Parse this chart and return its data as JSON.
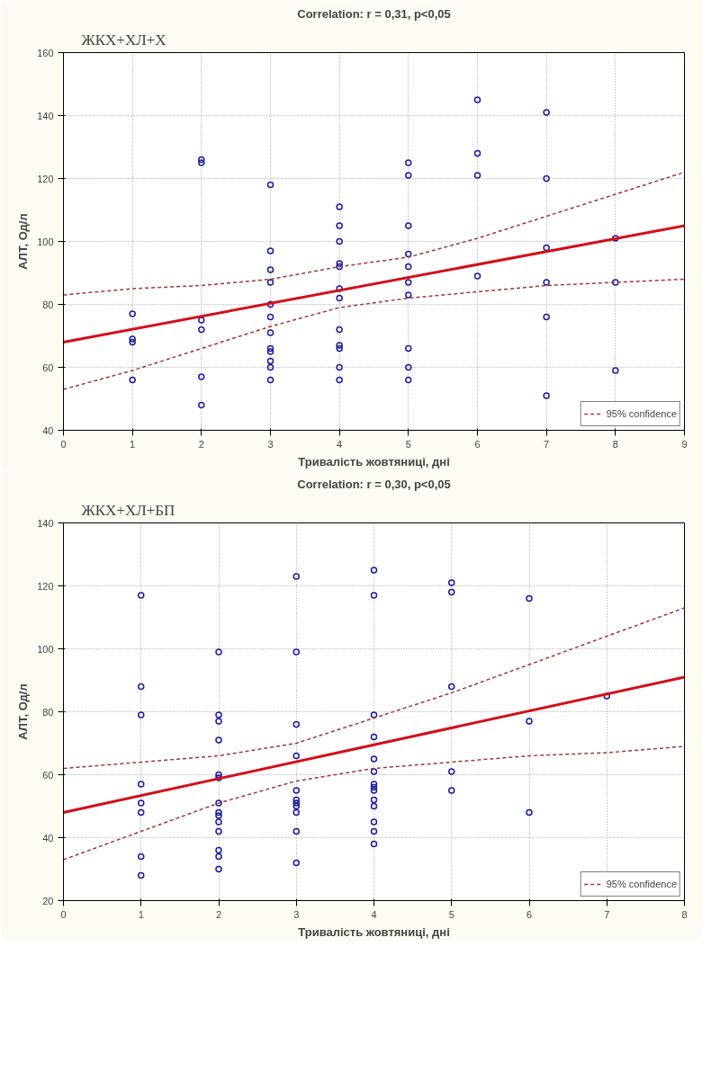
{
  "chart_data": [
    {
      "type": "scatter",
      "subtitle": "ЖКХ+ХЛ+Х",
      "title": "Correlation: r = 0,31, p<0,05",
      "xlabel": "Тривалість жовтяниці, дні",
      "ylabel": "АЛТ, Од/л",
      "xlim": [
        0,
        9
      ],
      "xticks": [
        0,
        1,
        2,
        3,
        4,
        5,
        6,
        7,
        8,
        9
      ],
      "ylim": [
        40,
        160
      ],
      "yticks": [
        40,
        60,
        80,
        100,
        120,
        140,
        160
      ],
      "grid": true,
      "legend": "bottom right",
      "series": [
        {
          "type": "scatter",
          "marker": "circle",
          "color": "#1c1c9c",
          "x": [
            1,
            1,
            1,
            1,
            2,
            2,
            2,
            2,
            2,
            2,
            3,
            3,
            3,
            3,
            3,
            3,
            3,
            3,
            3,
            3,
            3,
            3,
            4,
            4,
            4,
            4,
            4,
            4,
            4,
            4,
            4,
            4,
            4,
            4,
            5,
            5,
            5,
            5,
            5,
            5,
            5,
            5,
            5,
            5,
            6,
            6,
            6,
            6,
            7,
            7,
            7,
            7,
            7,
            7,
            8,
            8,
            8
          ],
          "values": [
            77,
            69,
            68,
            56,
            126,
            125,
            75,
            72,
            57,
            48,
            118,
            97,
            91,
            87,
            80,
            76,
            71,
            66,
            65,
            62,
            60,
            56,
            111,
            105,
            100,
            93,
            92,
            85,
            82,
            72,
            67,
            66,
            60,
            56,
            125,
            121,
            105,
            96,
            92,
            87,
            83,
            66,
            60,
            56,
            145,
            128,
            121,
            89,
            141,
            120,
            98,
            87,
            76,
            51,
            101,
            87,
            59
          ]
        },
        {
          "type": "line",
          "line_style": "solid",
          "color": "#d0101c",
          "x": [
            0,
            9
          ],
          "values": [
            68,
            105
          ]
        },
        {
          "type": "line",
          "line_style": "dashed",
          "name": "95% confidence",
          "color": "#a03838",
          "x": [
            0,
            1,
            2,
            3,
            4,
            5,
            6,
            7,
            8,
            9
          ],
          "values": [
            83,
            85,
            86,
            88,
            92,
            95,
            101,
            108,
            115,
            122
          ]
        },
        {
          "type": "line",
          "line_style": "dashed",
          "color": "#a03838",
          "x": [
            0,
            1,
            2,
            3,
            4,
            5,
            6,
            7,
            8,
            9
          ],
          "values": [
            53,
            59,
            66,
            73,
            79,
            82,
            84,
            86,
            87,
            88
          ]
        }
      ]
    },
    {
      "type": "scatter",
      "subtitle": "ЖКХ+ХЛ+БП",
      "title": "Correlation: r = 0,30, p<0,05",
      "xlabel": "Тривалість жовтяниці, дні",
      "ylabel": "АЛТ, Од/л",
      "xlim": [
        0,
        8
      ],
      "xticks": [
        0,
        1,
        2,
        3,
        4,
        5,
        6,
        7,
        8
      ],
      "ylim": [
        20,
        140
      ],
      "yticks": [
        20,
        40,
        60,
        80,
        100,
        120,
        140
      ],
      "grid": true,
      "legend": "bottom right",
      "series": [
        {
          "type": "scatter",
          "marker": "circle",
          "color": "#1c1c9c",
          "x": [
            1,
            1,
            1,
            1,
            1,
            1,
            1,
            1,
            2,
            2,
            2,
            2,
            2,
            2,
            2,
            2,
            2,
            2,
            2,
            2,
            2,
            2,
            3,
            3,
            3,
            3,
            3,
            3,
            3,
            3,
            3,
            3,
            3,
            4,
            4,
            4,
            4,
            4,
            4,
            4,
            4,
            4,
            4,
            4,
            4,
            4,
            4,
            5,
            5,
            5,
            5,
            5,
            6,
            6,
            6,
            7
          ],
          "values": [
            117,
            88,
            79,
            57,
            51,
            48,
            34,
            28,
            99,
            79,
            77,
            71,
            60,
            59,
            51,
            48,
            47,
            45,
            42,
            36,
            34,
            30,
            123,
            99,
            76,
            66,
            55,
            52,
            51,
            50,
            48,
            42,
            32,
            125,
            117,
            79,
            72,
            65,
            61,
            57,
            56,
            55,
            52,
            50,
            45,
            42,
            38,
            121,
            118,
            88,
            61,
            55,
            116,
            77,
            48,
            85
          ]
        },
        {
          "type": "line",
          "line_style": "solid",
          "color": "#d0101c",
          "x": [
            0,
            8
          ],
          "values": [
            48,
            91
          ]
        },
        {
          "type": "line",
          "line_style": "dashed",
          "name": "95% confidence",
          "color": "#a03838",
          "x": [
            0,
            1,
            2,
            3,
            4,
            5,
            6,
            7,
            8
          ],
          "values": [
            62,
            64,
            66,
            70,
            78,
            86,
            95,
            104,
            113
          ]
        },
        {
          "type": "line",
          "line_style": "dashed",
          "color": "#a03838",
          "x": [
            0,
            1,
            2,
            3,
            4,
            5,
            6,
            7,
            8
          ],
          "values": [
            33,
            42,
            51,
            58,
            62,
            64,
            66,
            67,
            69
          ]
        }
      ]
    }
  ]
}
